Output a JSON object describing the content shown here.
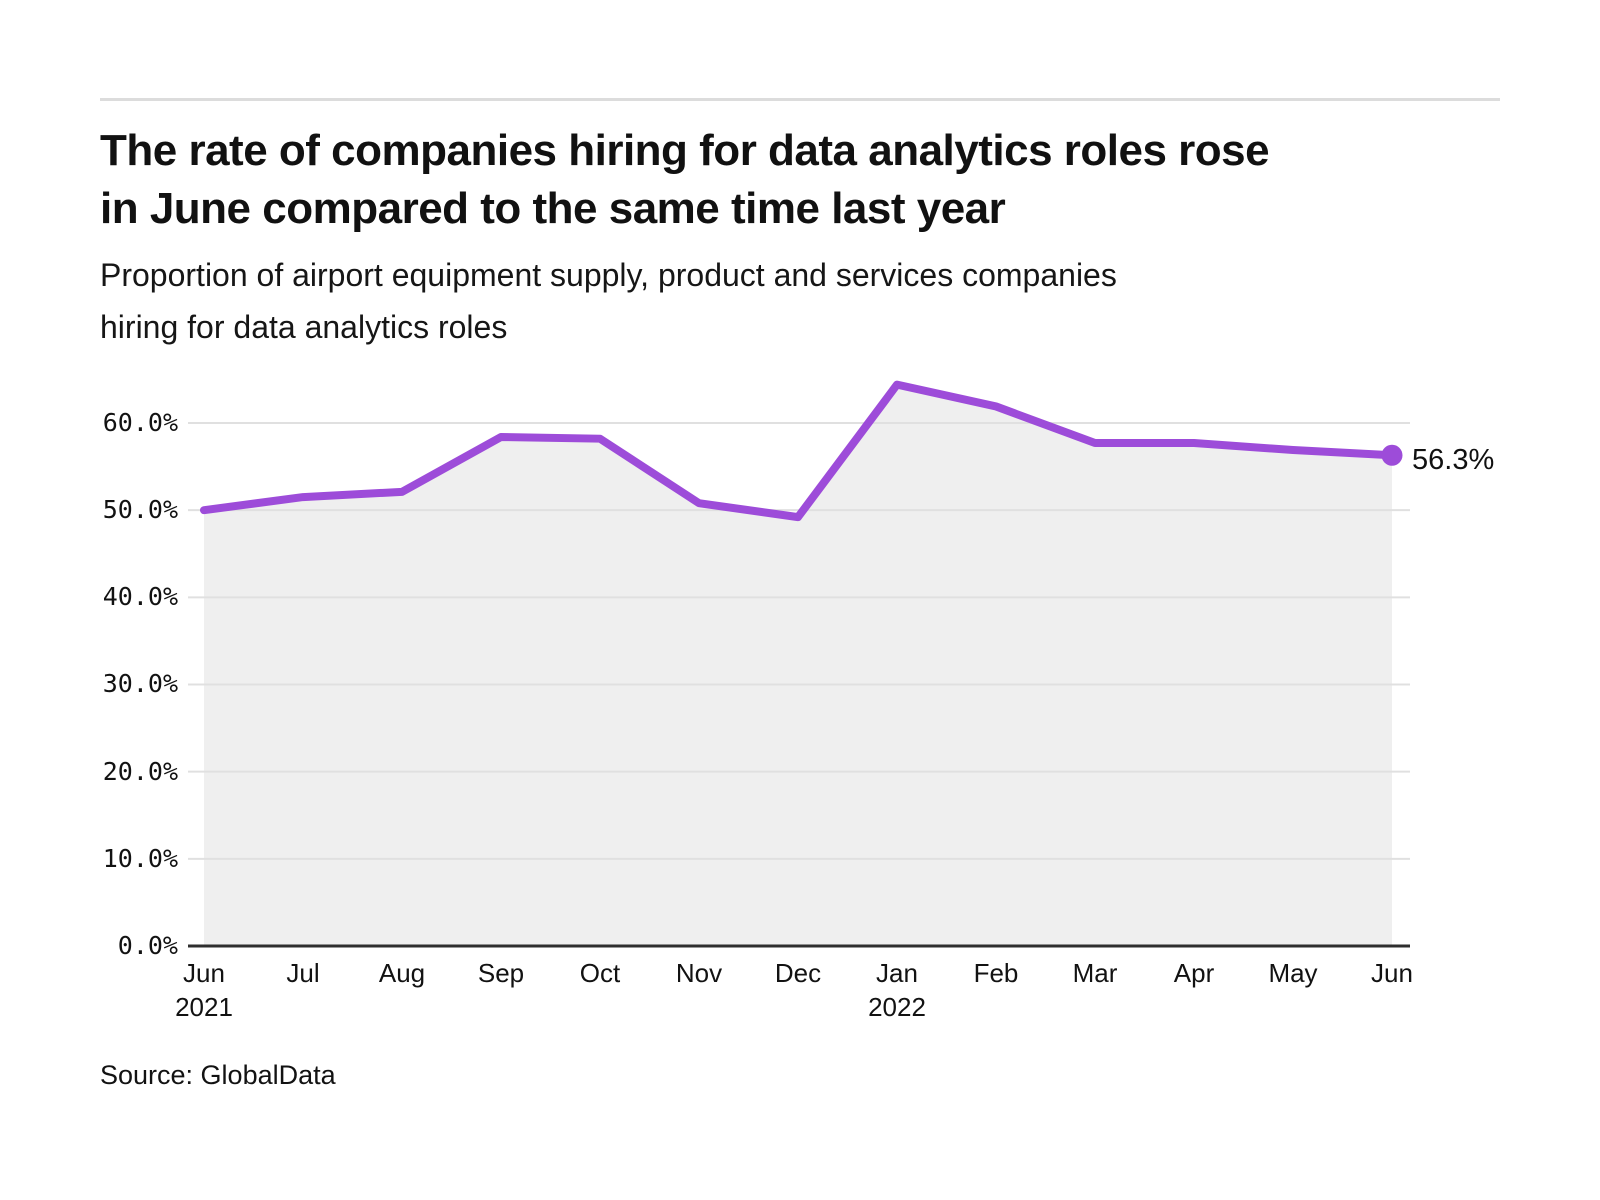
{
  "header": {
    "title_lines": [
      "The rate of companies hiring for data analytics roles rose",
      "in June compared to the same time last year"
    ],
    "subtitle_lines": [
      "Proportion of airport equipment supply, product and services companies",
      "hiring for data analytics roles"
    ]
  },
  "source": "Source: GlobalData",
  "colors": {
    "line": "#9d4cd9",
    "area_fill": "#efefef",
    "gridline": "#e0e0e0",
    "axis": "#2e2e2e",
    "text": "#121212",
    "rule": "#dcdcdc"
  },
  "chart_data": {
    "type": "line",
    "title": "Proportion of airport equipment supply, product and services companies hiring for data analytics roles",
    "x": [
      "Jun 2021",
      "Jul 2021",
      "Aug 2021",
      "Sep 2021",
      "Oct 2021",
      "Nov 2021",
      "Dec 2021",
      "Jan 2022",
      "Feb 2022",
      "Mar 2022",
      "Apr 2022",
      "May 2022",
      "Jun 2022"
    ],
    "categories": [
      "Jun",
      "Jul",
      "Aug",
      "Sep",
      "Oct",
      "Nov",
      "Dec",
      "Jan",
      "Feb",
      "Mar",
      "Apr",
      "May",
      "Jun"
    ],
    "year_labels": [
      {
        "index": 0,
        "text": "2021"
      },
      {
        "index": 7,
        "text": "2022"
      }
    ],
    "series": [
      {
        "name": "Proportion of companies hiring for data analytics roles",
        "values": [
          50.0,
          51.5,
          52.1,
          58.4,
          58.2,
          50.8,
          49.2,
          64.4,
          61.9,
          57.7,
          57.7,
          56.9,
          56.3
        ]
      }
    ],
    "unit": "%",
    "y_ticks": [
      {
        "value": 60,
        "label": "60.0%"
      },
      {
        "value": 50,
        "label": "50.0%"
      },
      {
        "value": 40,
        "label": "40.0%"
      },
      {
        "value": 30,
        "label": "30.0%"
      },
      {
        "value": 20,
        "label": "20.0%"
      },
      {
        "value": 10,
        "label": "10.0%"
      },
      {
        "value": 0,
        "label": "0.0%"
      }
    ],
    "ylim": [
      0,
      66
    ],
    "end_label": "56.3%",
    "grid": "horizontal",
    "legend": "none",
    "area": true
  }
}
